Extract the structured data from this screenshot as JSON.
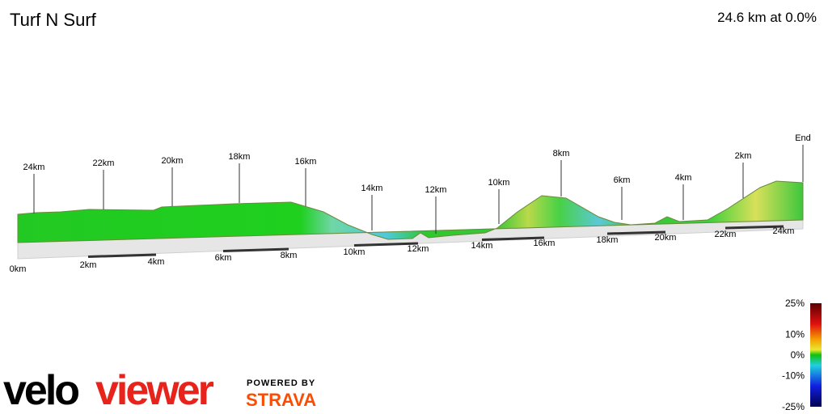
{
  "header": {
    "title": "Turf N Surf",
    "summary": "24.6 km at 0.0%"
  },
  "profile": {
    "base_labels": [
      "0km",
      "2km",
      "4km",
      "6km",
      "8km",
      "10km",
      "12km",
      "14km",
      "16km",
      "18km",
      "20km",
      "22km",
      "24km"
    ],
    "marker_labels": [
      "24km",
      "22km",
      "20km",
      "18km",
      "16km",
      "14km",
      "12km",
      "10km",
      "8km",
      "6km",
      "4km",
      "2km",
      "End"
    ]
  },
  "legend": {
    "ticks": [
      {
        "value": 25,
        "label": "25%"
      },
      {
        "value": 10,
        "label": "10%"
      },
      {
        "value": 0,
        "label": "0%"
      },
      {
        "value": -10,
        "label": "-10%"
      },
      {
        "value": -25,
        "label": "-25%"
      }
    ]
  },
  "logo": {
    "velo": "velo",
    "viewer": "viewer",
    "powered": "POWERED BY",
    "strava": "STRAVA"
  }
}
